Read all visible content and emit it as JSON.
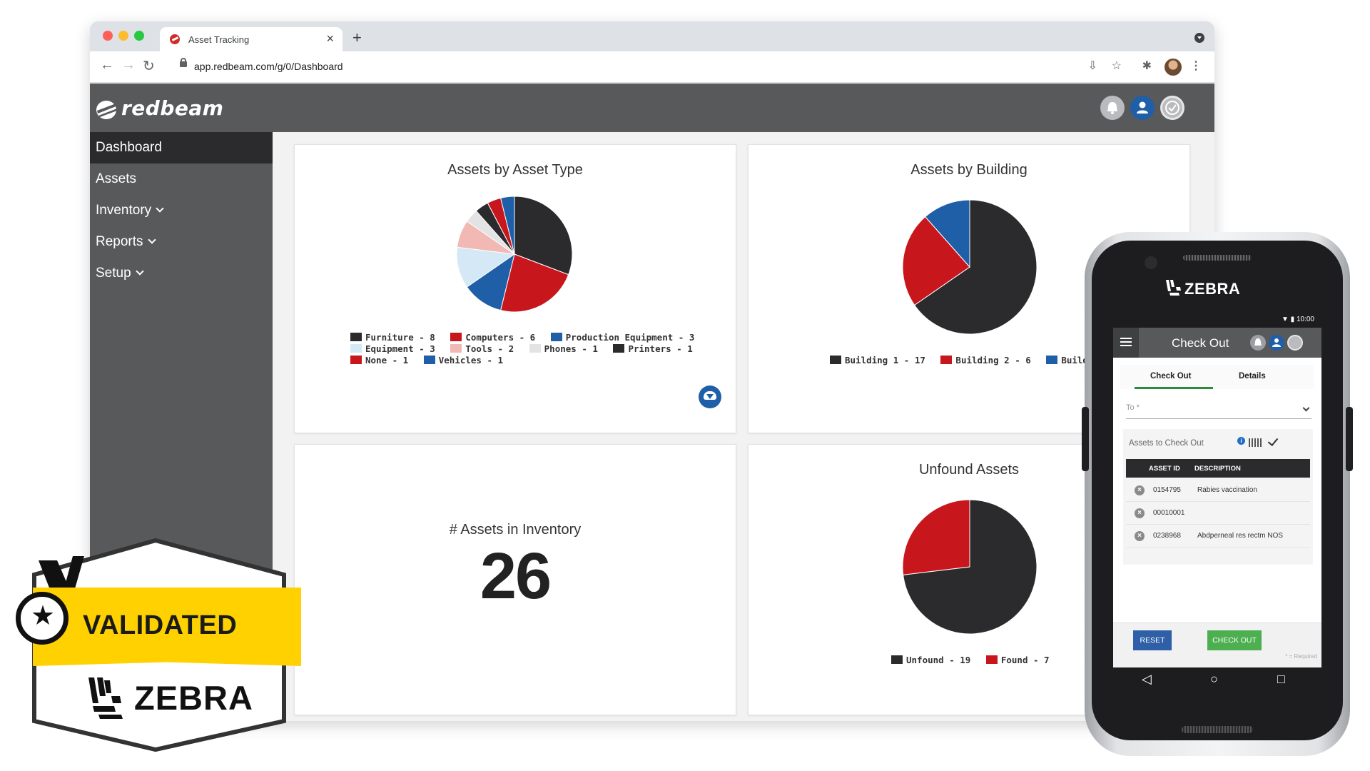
{
  "browser": {
    "tab_title": "Asset Tracking",
    "url": "app.redbeam.com/g/0/Dashboard"
  },
  "app": {
    "brand": "redbeam",
    "nav": [
      {
        "label": "Dashboard",
        "active": true,
        "dropdown": false
      },
      {
        "label": "Assets",
        "active": false,
        "dropdown": false
      },
      {
        "label": "Inventory",
        "active": false,
        "dropdown": true
      },
      {
        "label": "Reports",
        "active": false,
        "dropdown": true
      },
      {
        "label": "Setup",
        "active": false,
        "dropdown": true
      }
    ],
    "header_icons": [
      "bell-icon",
      "user-icon",
      "status-icon"
    ]
  },
  "dashboard": {
    "inventory_title": "# Assets in Inventory",
    "inventory_count": "26"
  },
  "chart_data": [
    {
      "type": "pie",
      "title": "Assets by Asset Type",
      "slices": [
        {
          "label": "Furniture",
          "value": 8,
          "color": "#2b2b2e"
        },
        {
          "label": "Computers",
          "value": 6,
          "color": "#c8161d"
        },
        {
          "label": "Production Equipment",
          "value": 3,
          "color": "#1f5fa8"
        },
        {
          "label": "Equipment",
          "value": 3,
          "color": "#d4e8f6"
        },
        {
          "label": "Tools",
          "value": 2,
          "color": "#f2b8b3"
        },
        {
          "label": "Phones",
          "value": 1,
          "color": "#e3e3e5"
        },
        {
          "label": "Printers",
          "value": 1,
          "color": "#2b2b2e"
        },
        {
          "label": "None",
          "value": 1,
          "color": "#c8161d"
        },
        {
          "label": "Vehicles",
          "value": 1,
          "color": "#1f5fa8"
        }
      ],
      "legend_text": [
        [
          "Furniture - 8",
          "Computers - 6",
          "Production Equipment - 3"
        ],
        [
          "Equipment - 3",
          "Tools - 2",
          "Phones - 1",
          "Printers - 1"
        ],
        [
          "None - 1",
          "Vehicles - 1"
        ]
      ]
    },
    {
      "type": "pie",
      "title": "Assets by Building",
      "slices": [
        {
          "label": "Building 1",
          "value": 17,
          "color": "#2b2b2e"
        },
        {
          "label": "Building 2",
          "value": 6,
          "color": "#c8161d"
        },
        {
          "label": "Building 3",
          "value": 3,
          "color": "#1f5fa8"
        }
      ],
      "legend_text": [
        [
          "Building 1 - 17",
          "Building 2 - 6",
          "Building"
        ]
      ]
    },
    {
      "type": "pie",
      "title": "Unfound Assets",
      "slices": [
        {
          "label": "Unfound",
          "value": 19,
          "color": "#2b2b2e"
        },
        {
          "label": "Found",
          "value": 7,
          "color": "#c8161d"
        }
      ],
      "legend_text": [
        [
          "Unfound - 19",
          "Found - 7"
        ]
      ]
    }
  ],
  "badge": {
    "validated": "VALIDATED",
    "brand": "ZEBRA"
  },
  "phone": {
    "brand": "ZEBRA",
    "time": "10:00",
    "title": "Check Out",
    "tabs": [
      "Check Out",
      "Details"
    ],
    "to_placeholder": "To *",
    "assets_label": "Assets to Check Out",
    "columns": [
      "ASSET ID",
      "DESCRIPTION"
    ],
    "rows": [
      {
        "id": "0154795",
        "description": "Rabies vaccination"
      },
      {
        "id": "00010001",
        "description": ""
      },
      {
        "id": "0238968",
        "description": "Abdperneal res rectm NOS"
      }
    ],
    "reset": "RESET",
    "checkout": "CHECK OUT",
    "required_note": "* = Required",
    "colors": {
      "reset": "#2f5fa7",
      "checkout": "#4caf50"
    }
  }
}
